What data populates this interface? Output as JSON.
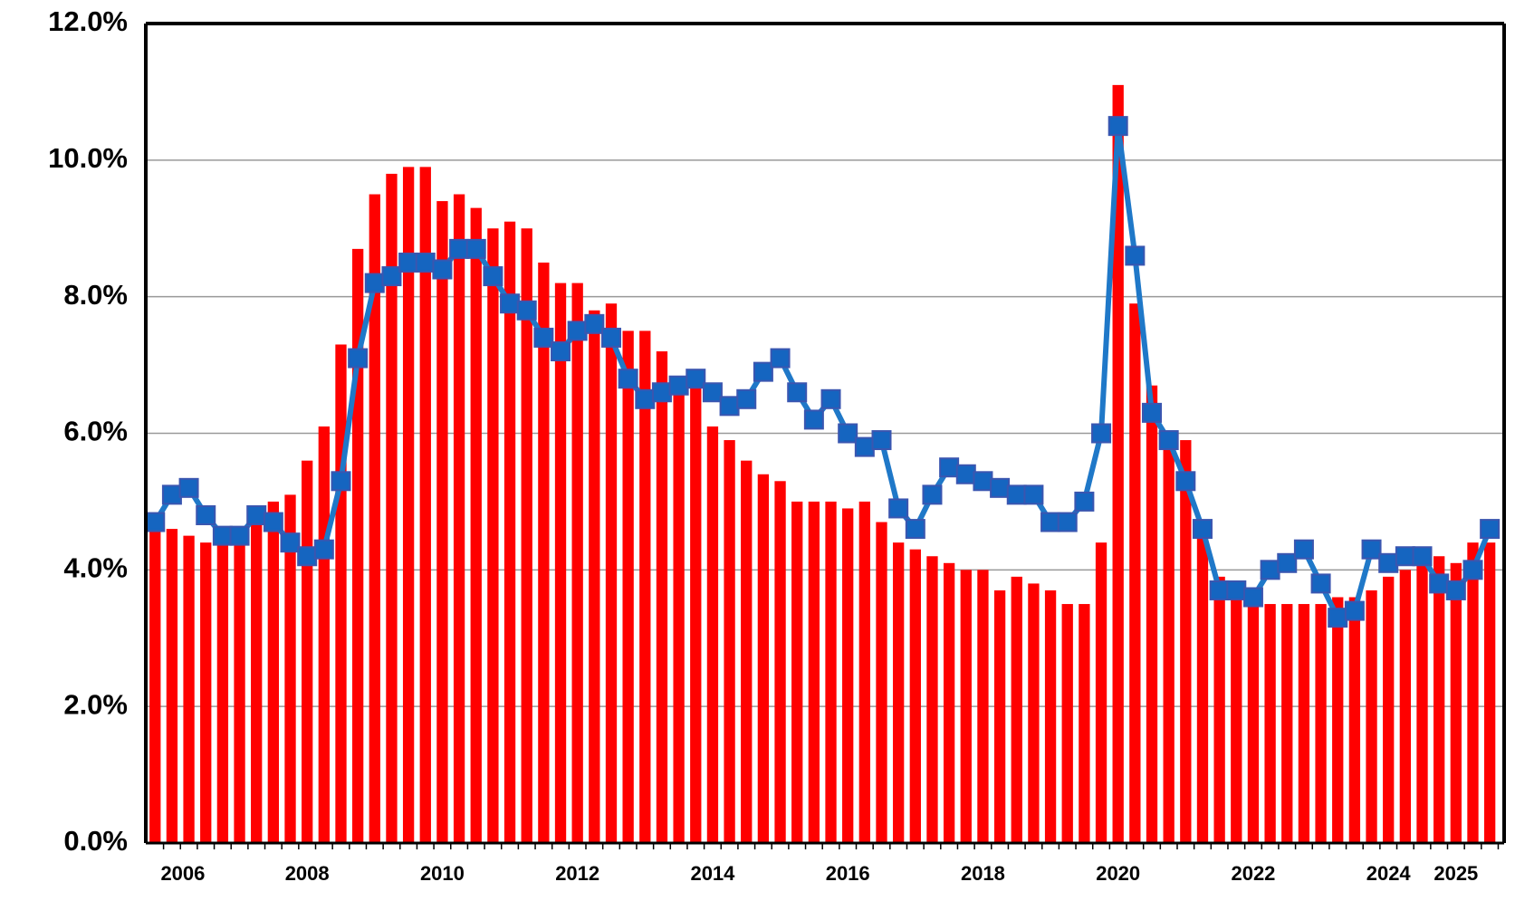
{
  "chart_data": {
    "type": "bar_line",
    "categories": [
      null,
      "2006",
      null,
      null,
      null,
      null,
      null,
      null,
      null,
      "2008",
      null,
      null,
      null,
      null,
      null,
      null,
      null,
      "2010",
      null,
      null,
      null,
      null,
      null,
      null,
      null,
      "2012",
      null,
      null,
      null,
      null,
      null,
      null,
      null,
      "2014",
      null,
      null,
      null,
      null,
      null,
      null,
      null,
      "2016",
      null,
      null,
      null,
      null,
      null,
      null,
      null,
      "2018",
      null,
      null,
      null,
      null,
      null,
      null,
      null,
      "2020",
      null,
      null,
      null,
      null,
      null,
      null,
      null,
      "2022",
      null,
      null,
      null,
      null,
      null,
      null,
      null,
      "2024",
      null,
      null,
      null,
      "2025",
      null,
      null
    ],
    "series": [
      {
        "type": "bar",
        "color": "#ff0000",
        "values": [
          4.7,
          4.6,
          4.5,
          4.4,
          4.5,
          4.5,
          4.8,
          5.0,
          5.1,
          5.6,
          6.1,
          7.3,
          8.7,
          9.5,
          9.8,
          9.9,
          9.9,
          9.4,
          9.5,
          9.3,
          9.0,
          9.1,
          9.0,
          8.5,
          8.2,
          8.2,
          7.8,
          7.9,
          7.5,
          7.5,
          7.2,
          6.7,
          6.7,
          6.1,
          5.9,
          5.6,
          5.4,
          5.3,
          5.0,
          5.0,
          5.0,
          4.9,
          5.0,
          4.7,
          4.4,
          4.3,
          4.2,
          4.1,
          4.0,
          4.0,
          3.7,
          3.9,
          3.8,
          3.7,
          3.5,
          3.5,
          4.4,
          11.1,
          7.9,
          6.7,
          5.9,
          5.9,
          4.6,
          3.9,
          3.6,
          3.5,
          3.5,
          3.5,
          3.5,
          3.5,
          3.6,
          3.6,
          3.7,
          3.9,
          4.0,
          4.1,
          4.2,
          4.1,
          4.4,
          4.4
        ]
      },
      {
        "type": "line",
        "color": "#1f78c8",
        "marker_color": "#1565c0",
        "values": [
          4.7,
          5.1,
          5.2,
          4.8,
          4.5,
          4.5,
          4.8,
          4.7,
          4.4,
          4.2,
          4.3,
          5.3,
          7.1,
          8.2,
          8.3,
          8.5,
          8.5,
          8.4,
          8.7,
          8.7,
          8.3,
          7.9,
          7.8,
          7.4,
          7.2,
          7.5,
          7.6,
          7.4,
          6.8,
          6.5,
          6.6,
          6.7,
          6.8,
          6.6,
          6.4,
          6.5,
          6.9,
          7.1,
          6.6,
          6.2,
          6.5,
          6.0,
          5.8,
          5.9,
          4.9,
          4.6,
          5.1,
          5.5,
          5.4,
          5.3,
          5.2,
          5.1,
          5.1,
          4.7,
          4.7,
          5.0,
          6.0,
          10.5,
          8.6,
          6.3,
          5.9,
          5.3,
          4.6,
          3.7,
          3.7,
          3.6,
          4.0,
          4.1,
          4.3,
          3.8,
          3.3,
          3.4,
          4.3,
          4.1,
          4.2,
          4.2,
          3.8,
          3.7,
          4.0,
          4.6
        ]
      }
    ],
    "ylim": [
      0,
      12
    ],
    "yticks": [
      {
        "value": 0,
        "label": "0.0%"
      },
      {
        "value": 2,
        "label": "2.0%"
      },
      {
        "value": 4,
        "label": "4.0%"
      },
      {
        "value": 6,
        "label": "6.0%"
      },
      {
        "value": 8,
        "label": "8.0%"
      },
      {
        "value": 10,
        "label": "10.0%"
      },
      {
        "value": 12,
        "label": "12.0%"
      }
    ],
    "grid": true
  }
}
